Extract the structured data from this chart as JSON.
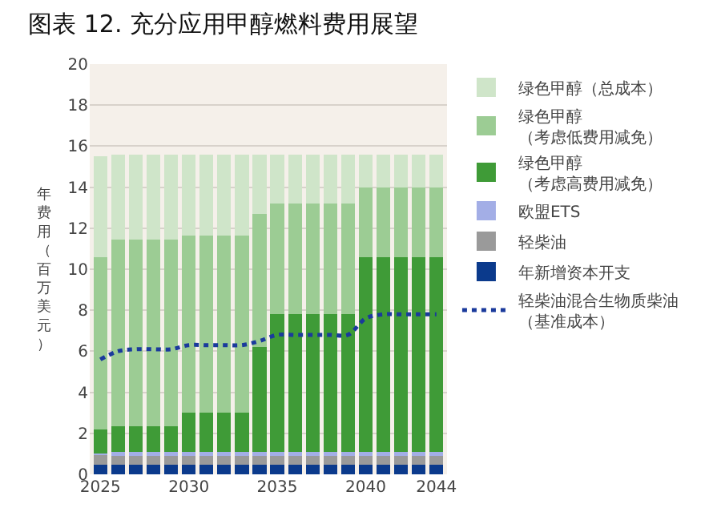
{
  "chart_data": {
    "type": "bar",
    "title": "图表 12. 充分应用甲醇燃料费用展望",
    "ylabel": "年费用（百万美元）",
    "stacked": true,
    "x": [
      2025,
      2026,
      2027,
      2028,
      2029,
      2030,
      2031,
      2032,
      2033,
      2034,
      2035,
      2036,
      2037,
      2038,
      2039,
      2040,
      2041,
      2042,
      2043,
      2044
    ],
    "xlim": [
      2024.4,
      2044.6
    ],
    "xticks": [
      2025,
      2030,
      2035,
      2040,
      2044
    ],
    "ylim": [
      0,
      20
    ],
    "yticks": [
      0,
      2,
      4,
      6,
      8,
      10,
      12,
      14,
      16,
      18,
      20
    ],
    "grid": "y",
    "legend": "right",
    "series": [
      {
        "name": "年新增资本开支",
        "color": "#0b3a8c",
        "values": [
          0.45,
          0.45,
          0.45,
          0.45,
          0.45,
          0.45,
          0.45,
          0.45,
          0.45,
          0.45,
          0.45,
          0.45,
          0.45,
          0.45,
          0.45,
          0.45,
          0.45,
          0.45,
          0.45,
          0.45
        ]
      },
      {
        "name": "轻柴油",
        "color": "#9a9a9a",
        "values": [
          0.5,
          0.45,
          0.45,
          0.45,
          0.45,
          0.45,
          0.45,
          0.45,
          0.45,
          0.45,
          0.45,
          0.45,
          0.45,
          0.45,
          0.45,
          0.45,
          0.45,
          0.45,
          0.45,
          0.45
        ]
      },
      {
        "name": "欧盟ETS",
        "color": "#a3aee6",
        "values": [
          0.05,
          0.2,
          0.2,
          0.2,
          0.2,
          0.2,
          0.2,
          0.2,
          0.2,
          0.2,
          0.2,
          0.2,
          0.2,
          0.2,
          0.2,
          0.2,
          0.2,
          0.2,
          0.2,
          0.2
        ]
      },
      {
        "name": "绿色甲醇（考虑高费用减免）",
        "color": "#3f9b37",
        "values": [
          1.2,
          1.25,
          1.25,
          1.25,
          1.25,
          1.9,
          1.9,
          1.9,
          1.9,
          5.1,
          6.7,
          6.7,
          6.7,
          6.7,
          6.7,
          9.5,
          9.5,
          9.5,
          9.5,
          9.5
        ]
      },
      {
        "name": "绿色甲醇（考虑低费用减免）",
        "color": "#9ccc94",
        "values": [
          8.4,
          9.1,
          9.1,
          9.1,
          9.1,
          8.65,
          8.65,
          8.65,
          8.65,
          6.5,
          5.4,
          5.4,
          5.4,
          5.4,
          5.4,
          3.4,
          3.4,
          3.4,
          3.4,
          3.4
        ]
      },
      {
        "name": "绿色甲醇（总成本）",
        "color": "#cfe5c9",
        "values": [
          4.9,
          4.15,
          4.15,
          4.15,
          4.15,
          3.95,
          3.95,
          3.95,
          3.95,
          2.9,
          2.4,
          2.4,
          2.4,
          2.4,
          2.4,
          1.6,
          1.6,
          1.6,
          1.6,
          1.6
        ]
      },
      {
        "name": "轻柴油混合生物质柴油（基准成本）",
        "type": "line",
        "color": "#1a3a9c",
        "line_style": "dotted",
        "values": [
          5.6,
          6.0,
          6.1,
          6.1,
          6.1,
          6.3,
          6.3,
          6.3,
          6.3,
          6.5,
          6.8,
          6.8,
          6.8,
          6.8,
          6.8,
          7.6,
          7.8,
          7.8,
          7.8,
          7.8
        ]
      }
    ]
  }
}
